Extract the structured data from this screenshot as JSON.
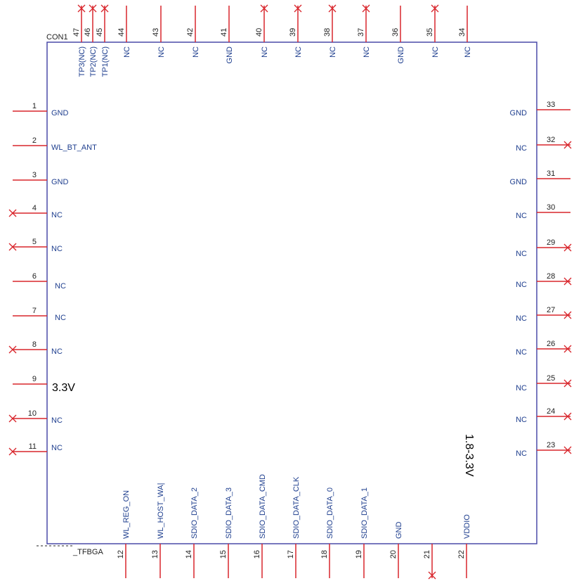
{
  "component": {
    "refdes": "CON1",
    "package": "_TFBGA",
    "colors": {
      "body": "#4a4aa8",
      "pin": "#d8262c",
      "pin_name": "#1f3f8f",
      "text": "#222222"
    }
  },
  "pins": [
    {
      "num": "1",
      "name": "GND",
      "side": "left",
      "nc_mark": false
    },
    {
      "num": "2",
      "name": "WL_BT_ANT",
      "side": "left",
      "nc_mark": false
    },
    {
      "num": "3",
      "name": "GND",
      "side": "left",
      "nc_mark": false
    },
    {
      "num": "4",
      "name": "NC",
      "side": "left",
      "nc_mark": true
    },
    {
      "num": "5",
      "name": "NC",
      "side": "left",
      "nc_mark": true
    },
    {
      "num": "6",
      "name": "NC",
      "side": "left",
      "nc_mark": false
    },
    {
      "num": "7",
      "name": "NC",
      "side": "left",
      "nc_mark": false
    },
    {
      "num": "8",
      "name": "NC",
      "side": "left",
      "nc_mark": true
    },
    {
      "num": "9",
      "name": "",
      "side": "left",
      "nc_mark": false
    },
    {
      "num": "10",
      "name": "NC",
      "side": "left",
      "nc_mark": true
    },
    {
      "num": "11",
      "name": "NC",
      "side": "left",
      "nc_mark": true
    },
    {
      "num": "12",
      "name": "WL_REG_ON",
      "side": "bottom",
      "nc_mark": false
    },
    {
      "num": "13",
      "name": "WL_HOST_WA|",
      "side": "bottom",
      "nc_mark": false
    },
    {
      "num": "14",
      "name": "SDIO_DATA_2",
      "side": "bottom",
      "nc_mark": false
    },
    {
      "num": "15",
      "name": "SDIO_DATA_3",
      "side": "bottom",
      "nc_mark": false
    },
    {
      "num": "16",
      "name": "SDIO_DATA_CMD",
      "side": "bottom",
      "nc_mark": false
    },
    {
      "num": "17",
      "name": "SDIO_DATA_CLK",
      "side": "bottom",
      "nc_mark": false
    },
    {
      "num": "18",
      "name": "SDIO_DATA_0",
      "side": "bottom",
      "nc_mark": false
    },
    {
      "num": "19",
      "name": "SDIO_DATA_1",
      "side": "bottom",
      "nc_mark": false
    },
    {
      "num": "20",
      "name": "GND",
      "side": "bottom",
      "nc_mark": false
    },
    {
      "num": "21",
      "name": "",
      "side": "bottom",
      "nc_mark": true
    },
    {
      "num": "22",
      "name": "VDDIO",
      "side": "bottom",
      "nc_mark": false
    },
    {
      "num": "23",
      "name": "NC",
      "side": "right",
      "nc_mark": true
    },
    {
      "num": "24",
      "name": "NC",
      "side": "right",
      "nc_mark": true
    },
    {
      "num": "25",
      "name": "NC",
      "side": "right",
      "nc_mark": true
    },
    {
      "num": "26",
      "name": "NC",
      "side": "right",
      "nc_mark": true
    },
    {
      "num": "27",
      "name": "NC",
      "side": "right",
      "nc_mark": true
    },
    {
      "num": "28",
      "name": "NC",
      "side": "right",
      "nc_mark": true
    },
    {
      "num": "29",
      "name": "NC",
      "side": "right",
      "nc_mark": true
    },
    {
      "num": "30",
      "name": "NC",
      "side": "right",
      "nc_mark": false
    },
    {
      "num": "31",
      "name": "GND",
      "side": "right",
      "nc_mark": false
    },
    {
      "num": "32",
      "name": "NC",
      "side": "right",
      "nc_mark": true
    },
    {
      "num": "33",
      "name": "GND",
      "side": "right",
      "nc_mark": false
    },
    {
      "num": "34",
      "name": "NC",
      "side": "top",
      "nc_mark": false
    },
    {
      "num": "35",
      "name": "NC",
      "side": "top",
      "nc_mark": true
    },
    {
      "num": "36",
      "name": "GND",
      "side": "top",
      "nc_mark": false
    },
    {
      "num": "37",
      "name": "NC",
      "side": "top",
      "nc_mark": true
    },
    {
      "num": "38",
      "name": "NC",
      "side": "top",
      "nc_mark": true
    },
    {
      "num": "39",
      "name": "NC",
      "side": "top",
      "nc_mark": true
    },
    {
      "num": "40",
      "name": "NC",
      "side": "top",
      "nc_mark": true
    },
    {
      "num": "41",
      "name": "GND",
      "side": "top",
      "nc_mark": false
    },
    {
      "num": "42",
      "name": "NC",
      "side": "top",
      "nc_mark": false
    },
    {
      "num": "43",
      "name": "NC",
      "side": "top",
      "nc_mark": false
    },
    {
      "num": "44",
      "name": "NC",
      "side": "top",
      "nc_mark": false
    },
    {
      "num": "45",
      "name": "TP1(NC)",
      "side": "top",
      "nc_mark": true
    },
    {
      "num": "46",
      "name": "TP2(NC)",
      "side": "top",
      "nc_mark": true
    },
    {
      "num": "47",
      "name": "TP3(NC)",
      "side": "top",
      "nc_mark": true
    }
  ],
  "annotations": {
    "left_voltage": "3.3V",
    "right_voltage": "1.8-3.3V"
  }
}
